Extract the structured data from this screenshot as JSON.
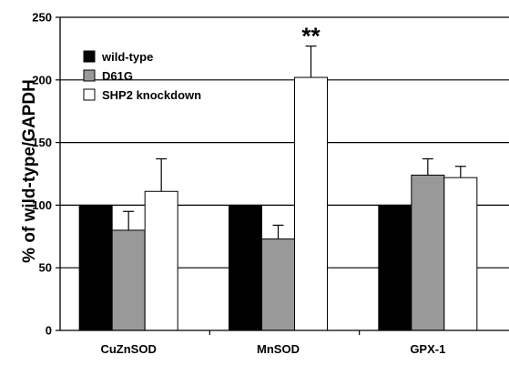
{
  "chart_data": {
    "type": "bar",
    "categories": [
      "CuZnSOD",
      "MnSOD",
      "GPX-1"
    ],
    "series": [
      {
        "name": "wild-type",
        "values": [
          100,
          100,
          100
        ],
        "errors": [
          0,
          0,
          0
        ],
        "color": "#000000"
      },
      {
        "name": "D61G",
        "values": [
          80,
          73,
          124
        ],
        "errors": [
          15,
          11,
          13
        ],
        "color": "#999999"
      },
      {
        "name": "SHP2 knockdown",
        "values": [
          111,
          202,
          122
        ],
        "errors": [
          26,
          25,
          9
        ],
        "color": "#ffffff"
      }
    ],
    "xlabel": "",
    "ylabel": "% of wild-type/GAPDH",
    "ylim": [
      0,
      250
    ],
    "yticks": [
      "0",
      "50",
      "100",
      "150",
      "200",
      "250"
    ],
    "grid": true,
    "legend_position": "top-left",
    "annotations": [
      {
        "text": "**",
        "category": "MnSOD",
        "series": "SHP2 knockdown"
      }
    ]
  }
}
